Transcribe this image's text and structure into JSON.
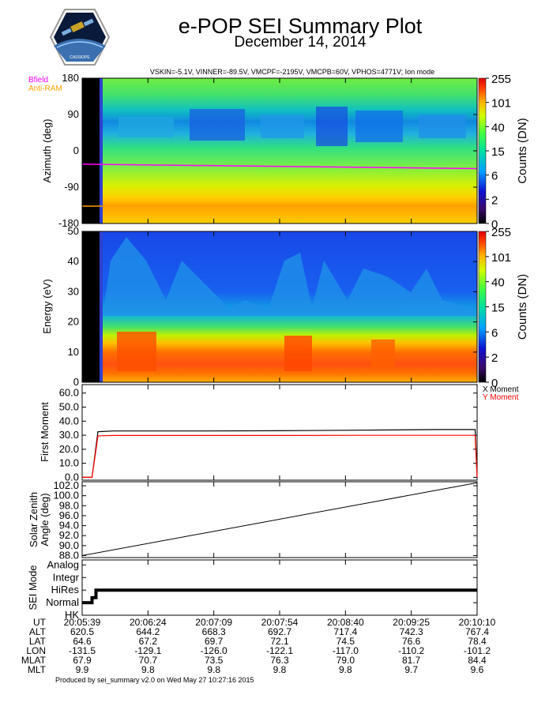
{
  "header": {
    "title": "e-POP SEI Summary Plot",
    "date": "December 14, 2014",
    "logo_text": "CASSIOPE",
    "params": "VSKIN=-5.1V, VINNER=-89.5V, VMCPF=-2195V, VMCPB=60V, VPHOS=4771V; Ion mode"
  },
  "legends": {
    "bfield": "Bfield",
    "antiram": "Anti-RAM",
    "x_moment": "X Moment",
    "y_moment": "Y Moment"
  },
  "colors": {
    "bfield": "#ff00ff",
    "antiram": "#ffa000",
    "x_moment": "#000000",
    "y_moment": "#ff0000"
  },
  "footer": "Produced by sei_summary v2.0 on Wed May 27 10:27:16 2015",
  "chart_data": [
    {
      "type": "heatmap",
      "ylabel": "Azimuth (deg)",
      "ylim": [
        -180,
        180
      ],
      "yticks": [
        "180",
        "90",
        "0",
        "-90",
        "-180"
      ],
      "ytick_values": [
        180,
        90,
        0,
        -90,
        -180
      ],
      "colorbar": {
        "label": "Counts (DN)",
        "ticks": [
          "255",
          "101",
          "40",
          "15",
          "6",
          "2",
          "0"
        ]
      },
      "lines": [
        {
          "name": "Bfield",
          "y": [
            -33,
            -44
          ]
        },
        {
          "name": "Anti-RAM",
          "y": [
            -137,
            -137
          ]
        }
      ]
    },
    {
      "type": "heatmap",
      "ylabel": "Energy (eV)",
      "ylim": [
        0,
        50
      ],
      "yticks": [
        "50",
        "40",
        "30",
        "20",
        "10",
        "0"
      ],
      "ytick_values": [
        50,
        40,
        30,
        20,
        10,
        0
      ],
      "colorbar": {
        "label": "Counts (DN)",
        "ticks": [
          "255",
          "101",
          "40",
          "15",
          "6",
          "2",
          "0"
        ]
      }
    },
    {
      "type": "line",
      "ylabel": "First Moment",
      "ylim": [
        -2,
        66
      ],
      "yticks": [
        "60.0",
        "50.0",
        "40.0",
        "30.0",
        "20.0",
        "10.0",
        "0.0"
      ],
      "ytick_values": [
        60,
        50,
        40,
        30,
        20,
        10,
        0
      ],
      "x_fraction": [
        0,
        0.025,
        0.04,
        0.08,
        0.3,
        0.5,
        0.7,
        0.9,
        0.995,
        1
      ],
      "series": [
        {
          "name": "X Moment",
          "values": [
            0,
            0,
            32.5,
            33.0,
            33.0,
            33.2,
            33.6,
            34.0,
            34.0,
            0
          ]
        },
        {
          "name": "Y Moment",
          "values": [
            0,
            0,
            29.5,
            29.8,
            29.8,
            29.8,
            29.9,
            29.9,
            29.9,
            0
          ]
        }
      ]
    },
    {
      "type": "line",
      "ylabel": "Solar Zenith Angle (deg)",
      "ylabel_lines": [
        "Solar Zenith",
        "Angle (deg)"
      ],
      "ylim": [
        87.6,
        102.8
      ],
      "yticks": [
        "102.0",
        "100.0",
        "98.0",
        "96.0",
        "94.0",
        "92.0",
        "90.0",
        "88.0"
      ],
      "ytick_values": [
        102,
        100,
        98,
        96,
        94,
        92,
        90,
        88
      ],
      "x_fraction": [
        0,
        1
      ],
      "values": [
        88.0,
        102.6
      ]
    },
    {
      "type": "line",
      "ylabel": "SEI Mode",
      "ylim": [
        0,
        4.4
      ],
      "yticks": [
        "Analog",
        "Integr",
        "HiRes",
        "Normal",
        "HK"
      ],
      "ytick_values": [
        4,
        3,
        2,
        1,
        0
      ],
      "x_fraction": [
        0,
        0.025,
        0.025,
        0.035,
        0.035,
        1
      ],
      "values": [
        1,
        1,
        1.4,
        1.4,
        2,
        2
      ]
    }
  ],
  "orbit_table": {
    "row_labels": [
      "UT",
      "ALT",
      "LAT",
      "LON",
      "MLAT",
      "MLT"
    ],
    "columns": [
      [
        "20:05:39",
        "620.5",
        "64.6",
        "-131.5",
        "67.9",
        "9.9"
      ],
      [
        "20:06:24",
        "644.2",
        "67.2",
        "-129.1",
        "70.7",
        "9.8"
      ],
      [
        "20:07:09",
        "668.3",
        "69.7",
        "-126.0",
        "73.5",
        "9.8"
      ],
      [
        "20:07:54",
        "692.7",
        "72.1",
        "-122.1",
        "76.3",
        "9.8"
      ],
      [
        "20:08:40",
        "717.4",
        "74.5",
        "-117.0",
        "79.0",
        "9.8"
      ],
      [
        "20:09:25",
        "742.3",
        "76.6",
        "-110.2",
        "81.7",
        "9.7"
      ],
      [
        "20:10:10",
        "767.4",
        "78.4",
        "-101.2",
        "84.4",
        "9.6"
      ]
    ]
  }
}
